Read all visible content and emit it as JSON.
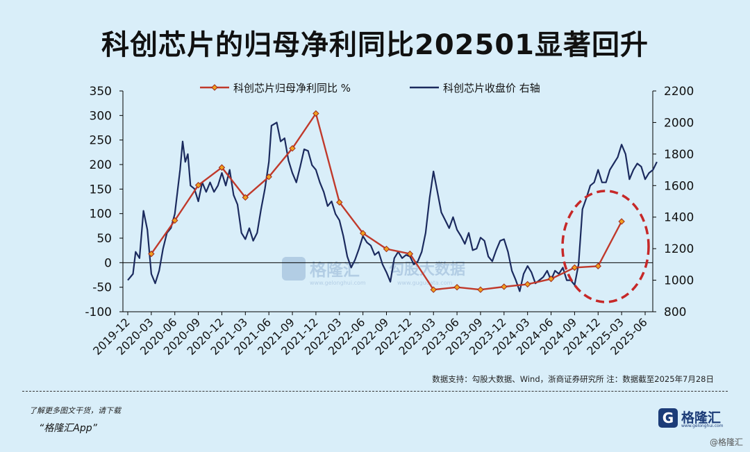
{
  "title": "科创芯片的归母净利同比202501显著回升",
  "chart_data": {
    "type": "line",
    "x_labels": [
      "2019-12",
      "2020-03",
      "2020-06",
      "2020-09",
      "2020-12",
      "2021-03",
      "2021-06",
      "2021-09",
      "2021-12",
      "2022-03",
      "2022-06",
      "2022-09",
      "2022-12",
      "2023-03",
      "2023-06",
      "2023-09",
      "2023-12",
      "2024-03",
      "2024-06",
      "2024-09",
      "2024-12",
      "2025-03",
      "2025-06"
    ],
    "left_axis": {
      "min": -100,
      "max": 350,
      "ticks": [
        -100,
        -50,
        0,
        50,
        100,
        150,
        200,
        250,
        300,
        350
      ]
    },
    "right_axis": {
      "min": 800,
      "max": 2200,
      "ticks": [
        800,
        1000,
        1200,
        1400,
        1600,
        1800,
        2000,
        2200
      ]
    },
    "legend_position": "top-center",
    "series": [
      {
        "name": "科创芯片归母净利同比 %",
        "axis": "left",
        "color": "#c0392b",
        "points": [
          [
            "2020-03",
            18
          ],
          [
            "2020-06",
            86
          ],
          [
            "2020-09",
            158
          ],
          [
            "2020-12",
            194
          ],
          [
            "2021-03",
            133
          ],
          [
            "2021-06",
            175
          ],
          [
            "2021-09",
            233
          ],
          [
            "2021-12",
            304
          ],
          [
            "2022-03",
            123
          ],
          [
            "2022-06",
            60
          ],
          [
            "2022-09",
            28
          ],
          [
            "2022-12",
            18
          ],
          [
            "2023-03",
            -55
          ],
          [
            "2023-06",
            -50
          ],
          [
            "2023-09",
            -55
          ],
          [
            "2023-12",
            -49
          ],
          [
            "2024-03",
            -44
          ],
          [
            "2024-06",
            -33
          ],
          [
            "2024-09",
            -10
          ],
          [
            "2024-12",
            -7
          ],
          [
            "2025-03",
            84
          ]
        ]
      },
      {
        "name": "科创芯片收盘价 右轴",
        "axis": "right",
        "color": "#1b2a5e",
        "points": [
          [
            "2019-12",
            1000
          ],
          [
            "2019-12-20",
            1040
          ],
          [
            "2020-01",
            1180
          ],
          [
            "2020-01-15",
            1140
          ],
          [
            "2020-02",
            1440
          ],
          [
            "2020-02-15",
            1320
          ],
          [
            "2020-03",
            1040
          ],
          [
            "2020-03-15",
            980
          ],
          [
            "2020-04",
            1060
          ],
          [
            "2020-04-15",
            1200
          ],
          [
            "2020-05",
            1300
          ],
          [
            "2020-05-15",
            1330
          ],
          [
            "2020-06",
            1420
          ],
          [
            "2020-06-20",
            1700
          ],
          [
            "2020-07",
            1880
          ],
          [
            "2020-07-10",
            1750
          ],
          [
            "2020-07-20",
            1800
          ],
          [
            "2020-08",
            1600
          ],
          [
            "2020-08-15",
            1580
          ],
          [
            "2020-09",
            1500
          ],
          [
            "2020-09-15",
            1620
          ],
          [
            "2020-10",
            1560
          ],
          [
            "2020-10-15",
            1620
          ],
          [
            "2020-11",
            1560
          ],
          [
            "2020-11-15",
            1600
          ],
          [
            "2020-12",
            1680
          ],
          [
            "2020-12-15",
            1600
          ],
          [
            "2021-01",
            1700
          ],
          [
            "2021-01-15",
            1540
          ],
          [
            "2021-02",
            1480
          ],
          [
            "2021-02-15",
            1300
          ],
          [
            "2021-03",
            1260
          ],
          [
            "2021-03-15",
            1330
          ],
          [
            "2021-04",
            1250
          ],
          [
            "2021-04-15",
            1300
          ],
          [
            "2021-05",
            1450
          ],
          [
            "2021-05-15",
            1580
          ],
          [
            "2021-06",
            1750
          ],
          [
            "2021-06-10",
            1980
          ],
          [
            "2021-07",
            2000
          ],
          [
            "2021-07-15",
            1880
          ],
          [
            "2021-08",
            1900
          ],
          [
            "2021-08-15",
            1760
          ],
          [
            "2021-09",
            1680
          ],
          [
            "2021-09-15",
            1620
          ],
          [
            "2021-10",
            1720
          ],
          [
            "2021-10-15",
            1830
          ],
          [
            "2021-11",
            1820
          ],
          [
            "2021-11-15",
            1730
          ],
          [
            "2021-12",
            1700
          ],
          [
            "2021-12-15",
            1620
          ],
          [
            "2022-01",
            1560
          ],
          [
            "2022-01-15",
            1470
          ],
          [
            "2022-02",
            1500
          ],
          [
            "2022-02-15",
            1420
          ],
          [
            "2022-03",
            1380
          ],
          [
            "2022-03-15",
            1280
          ],
          [
            "2022-04",
            1150
          ],
          [
            "2022-04-15",
            1080
          ],
          [
            "2022-05",
            1130
          ],
          [
            "2022-05-15",
            1200
          ],
          [
            "2022-06",
            1280
          ],
          [
            "2022-06-15",
            1240
          ],
          [
            "2022-07",
            1220
          ],
          [
            "2022-07-15",
            1160
          ],
          [
            "2022-08",
            1180
          ],
          [
            "2022-08-15",
            1100
          ],
          [
            "2022-09",
            1050
          ],
          [
            "2022-09-15",
            990
          ],
          [
            "2022-10",
            1140
          ],
          [
            "2022-10-15",
            1180
          ],
          [
            "2022-11",
            1140
          ],
          [
            "2022-11-15",
            1160
          ],
          [
            "2022-12",
            1150
          ],
          [
            "2022-12-15",
            1100
          ],
          [
            "2023-01",
            1120
          ],
          [
            "2023-01-15",
            1180
          ],
          [
            "2023-02",
            1300
          ],
          [
            "2023-02-15",
            1520
          ],
          [
            "2023-03",
            1690
          ],
          [
            "2023-03-15",
            1560
          ],
          [
            "2023-04",
            1430
          ],
          [
            "2023-04-15",
            1380
          ],
          [
            "2023-05",
            1330
          ],
          [
            "2023-05-15",
            1400
          ],
          [
            "2023-06",
            1320
          ],
          [
            "2023-06-15",
            1280
          ],
          [
            "2023-07",
            1230
          ],
          [
            "2023-07-15",
            1300
          ],
          [
            "2023-08",
            1190
          ],
          [
            "2023-08-15",
            1200
          ],
          [
            "2023-09",
            1270
          ],
          [
            "2023-09-15",
            1250
          ],
          [
            "2023-10",
            1150
          ],
          [
            "2023-10-15",
            1120
          ],
          [
            "2023-11",
            1190
          ],
          [
            "2023-11-15",
            1250
          ],
          [
            "2023-12",
            1260
          ],
          [
            "2023-12-15",
            1180
          ],
          [
            "2024-01",
            1060
          ],
          [
            "2024-01-15",
            1000
          ],
          [
            "2024-02",
            930
          ],
          [
            "2024-02-15",
            1040
          ],
          [
            "2024-03",
            1090
          ],
          [
            "2024-03-15",
            1050
          ],
          [
            "2024-04",
            980
          ],
          [
            "2024-04-15",
            1000
          ],
          [
            "2024-05",
            1020
          ],
          [
            "2024-05-15",
            1060
          ],
          [
            "2024-06",
            1000
          ],
          [
            "2024-06-15",
            1060
          ],
          [
            "2024-07",
            1040
          ],
          [
            "2024-07-15",
            1080
          ],
          [
            "2024-08",
            1000
          ],
          [
            "2024-08-15",
            1000
          ],
          [
            "2024-09",
            970
          ],
          [
            "2024-09-15",
            1100
          ],
          [
            "2024-10",
            1450
          ],
          [
            "2024-10-15",
            1520
          ],
          [
            "2024-11",
            1600
          ],
          [
            "2024-11-15",
            1620
          ],
          [
            "2024-12",
            1700
          ],
          [
            "2024-12-15",
            1620
          ],
          [
            "2025-01",
            1620
          ],
          [
            "2025-01-15",
            1700
          ],
          [
            "2025-02",
            1740
          ],
          [
            "2025-02-15",
            1780
          ],
          [
            "2025-03",
            1860
          ],
          [
            "2025-03-15",
            1800
          ],
          [
            "2025-04",
            1640
          ],
          [
            "2025-04-15",
            1700
          ],
          [
            "2025-05",
            1740
          ],
          [
            "2025-05-15",
            1720
          ],
          [
            "2025-06",
            1640
          ],
          [
            "2025-06-15",
            1680
          ],
          [
            "2025-07",
            1700
          ],
          [
            "2025-07-15",
            1750
          ]
        ]
      }
    ],
    "annotation": "red dashed ellipse around 2024-09 to 2025-03"
  },
  "watermark": {
    "name": "格隆汇",
    "site": "www.gelonghui.com",
    "site2": "www.gugudata.com",
    "name2": "勾股大数据"
  },
  "source": "数据支持：勾股大数据、Wind，浙商证券研究所  注：数据截至2025年7月28日",
  "promo": "了解更多图文干货，请下载",
  "app": "“格隆汇App”",
  "brand": {
    "icon": "G",
    "name": "格隆汇",
    "site": "www.gelonghui.com"
  },
  "corner_mark": "@格隆汇"
}
